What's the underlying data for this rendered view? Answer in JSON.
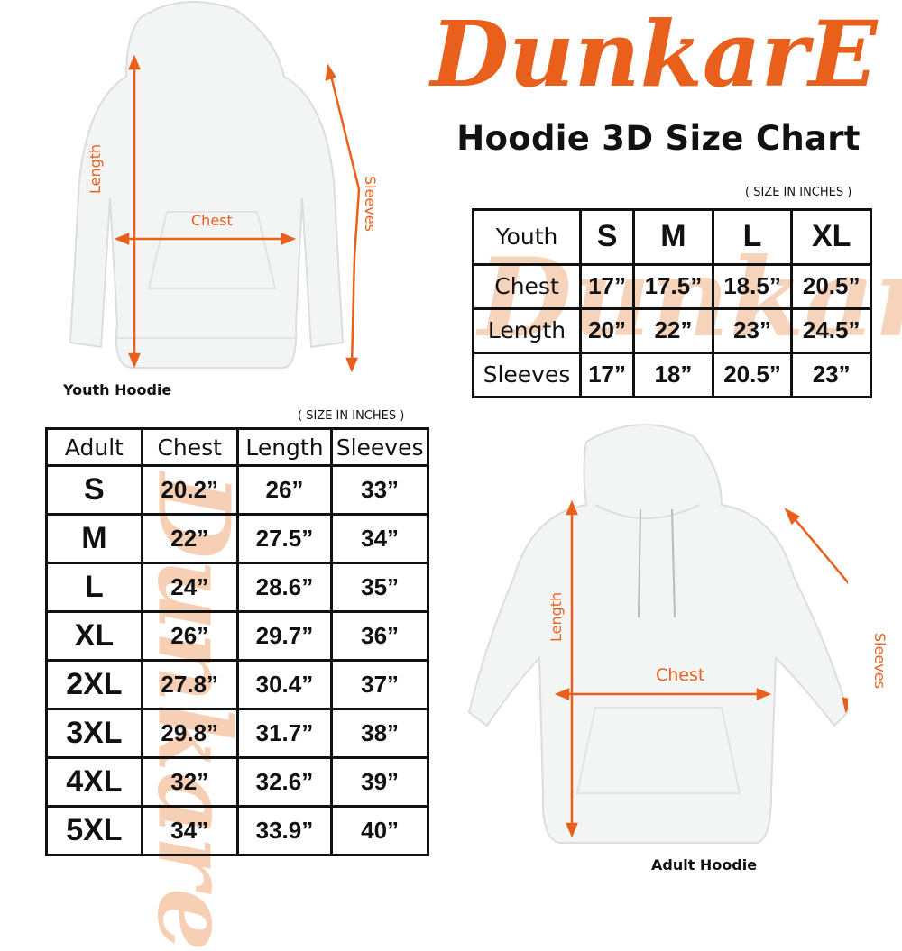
{
  "brand": {
    "logo_text": "DunkarE",
    "color": "#e8601c",
    "watermark_color": "#f6cfb4"
  },
  "title": "Hoodie 3D Size Chart",
  "youth": {
    "unit_note": "( SIZE IN INCHES )",
    "caption": "Youth Hoodie",
    "labels": {
      "length": "Length",
      "chest": "Chest",
      "sleeves": "Sleeves"
    },
    "table": {
      "header": [
        "Youth",
        "S",
        "M",
        "L",
        "XL"
      ],
      "rows": [
        [
          "Chest",
          "17”",
          "17.5”",
          "18.5”",
          "20.5”"
        ],
        [
          "Length",
          "20”",
          "22”",
          "23”",
          "24.5”"
        ],
        [
          "Sleeves",
          "17”",
          "18”",
          "20.5”",
          "23”"
        ]
      ]
    }
  },
  "adult": {
    "unit_note": "( SIZE IN INCHES )",
    "caption": "Adult Hoodie",
    "labels": {
      "length": "Length",
      "chest": "Chest",
      "sleeves": "Sleeves"
    },
    "table": {
      "header": [
        "Adult",
        "Chest",
        "Length",
        "Sleeves"
      ],
      "rows": [
        [
          "S",
          "20.2”",
          "26”",
          "33”"
        ],
        [
          "M",
          "22”",
          "27.5”",
          "34”"
        ],
        [
          "L",
          "24”",
          "28.6”",
          "35”"
        ],
        [
          "XL",
          "26”",
          "29.7”",
          "36”"
        ],
        [
          "2XL",
          "27.8”",
          "30.4”",
          "37”"
        ],
        [
          "3XL",
          "29.8”",
          "31.7”",
          "38”"
        ],
        [
          "4XL",
          "32”",
          "32.6”",
          "39”"
        ],
        [
          "5XL",
          "34”",
          "33.9”",
          "40”"
        ]
      ]
    }
  }
}
